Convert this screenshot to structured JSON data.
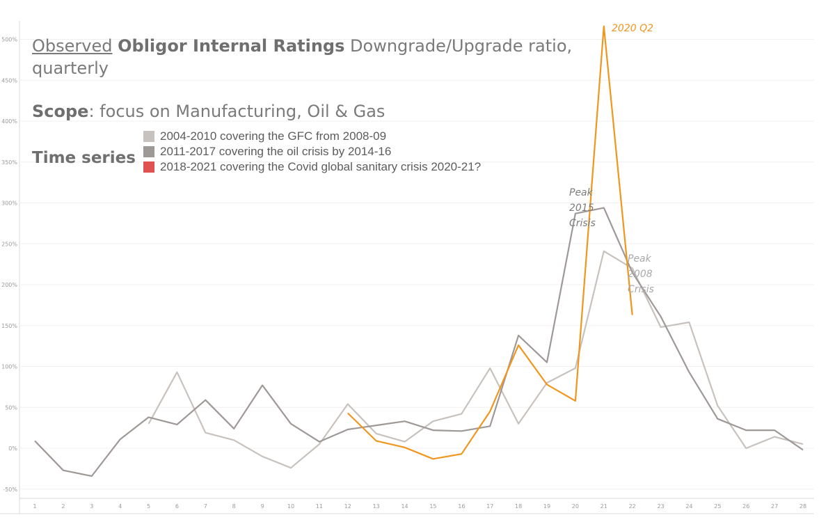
{
  "chart_data": {
    "type": "line",
    "title_parts": {
      "observed": "Observed",
      "bold": "Obligor Internal Ratings",
      "rest": "Downgrade/Upgrade ratio,",
      "line2": "quarterly"
    },
    "scope_label": "Scope",
    "scope_text": ": focus on Manufacturing, Oil & Gas",
    "legend_title": "Time series",
    "x": [
      1,
      2,
      3,
      4,
      5,
      6,
      7,
      8,
      9,
      10,
      11,
      12,
      13,
      14,
      15,
      16,
      17,
      18,
      19,
      20,
      21,
      22,
      23,
      24,
      25,
      26,
      27,
      28
    ],
    "ylim": [
      -50,
      530
    ],
    "yticks": [
      -50,
      0,
      50,
      100,
      150,
      200,
      250,
      300,
      350,
      400,
      450,
      500
    ],
    "ytick_labels": [
      "-50%",
      "0%",
      "50%",
      "100%",
      "150%",
      "200%",
      "250%",
      "300%",
      "350%",
      "400%",
      "450%",
      "500%"
    ],
    "series": [
      {
        "name": "2004-2010 covering the GFC from 2008-09",
        "color": "#c8c2be",
        "legend_color": "#c8c2be",
        "x": [
          5,
          6,
          7,
          8,
          9,
          10,
          11,
          12,
          13,
          14,
          15,
          16,
          17,
          18,
          19,
          20,
          21,
          22,
          23,
          24,
          25,
          26,
          27,
          28
        ],
        "values": [
          30,
          93,
          19,
          10,
          -10,
          -24,
          5,
          54,
          18,
          8,
          33,
          42,
          98,
          30,
          80,
          98,
          241,
          220,
          148,
          154,
          52,
          0,
          14,
          5
        ]
      },
      {
        "name": "2011-2017 covering the oil crisis by 2014-16",
        "color": "#9e9896",
        "legend_color": "#9e9896",
        "x": [
          1,
          2,
          3,
          4,
          5,
          6,
          7,
          8,
          9,
          10,
          11,
          12,
          13,
          14,
          15,
          16,
          17,
          18,
          19,
          20,
          21,
          22,
          23,
          24,
          25,
          26,
          27,
          28
        ],
        "values": [
          9,
          -27,
          -34,
          11,
          38,
          29,
          59,
          24,
          77,
          30,
          8,
          23,
          28,
          33,
          22,
          21,
          27,
          138,
          105,
          287,
          294,
          215,
          161,
          93,
          36,
          22,
          22,
          -2
        ]
      },
      {
        "name": "2018-2021 covering the Covid global sanitary crisis 2020-21?",
        "color": "#f0961e",
        "legend_color": "#e05252",
        "x": [
          12,
          13,
          14,
          15,
          16,
          17,
          18,
          19,
          20,
          21,
          22
        ],
        "values": [
          43,
          9,
          1,
          -13,
          -7,
          45,
          126,
          78,
          58,
          516,
          163
        ]
      }
    ],
    "annotations": [
      {
        "text": "2020 Q2",
        "color": "#f0961e"
      },
      {
        "lines": [
          "Peak",
          "2015",
          "Crisis"
        ],
        "color": "#7c7c7c"
      },
      {
        "lines": [
          "Peak",
          "2008",
          "Crisis"
        ],
        "color": "#a9a9a9"
      }
    ]
  }
}
